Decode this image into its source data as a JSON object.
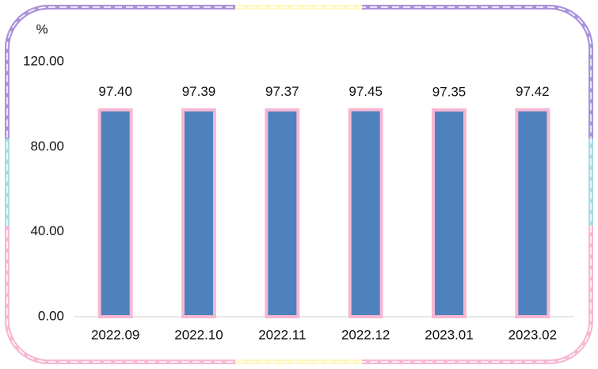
{
  "chart_data": {
    "type": "bar",
    "y_label": "%",
    "categories": [
      "2022.09",
      "2022.10",
      "2022.11",
      "2022.12",
      "2023.01",
      "2023.02"
    ],
    "values": [
      97.4,
      97.39,
      97.37,
      97.45,
      97.35,
      97.42
    ],
    "value_labels": [
      "97.40",
      "97.39",
      "97.37",
      "97.45",
      "97.35",
      "97.42"
    ],
    "color": "#4f81bd",
    "edge_color": "#f7b8d3",
    "ylim": [
      0,
      120
    ],
    "yticks": [
      {
        "value": 0,
        "label": "0.00"
      },
      {
        "value": 40,
        "label": "40.00"
      },
      {
        "value": 80,
        "label": "80.00"
      },
      {
        "value": 120,
        "label": "120.00"
      }
    ],
    "grid": false
  }
}
